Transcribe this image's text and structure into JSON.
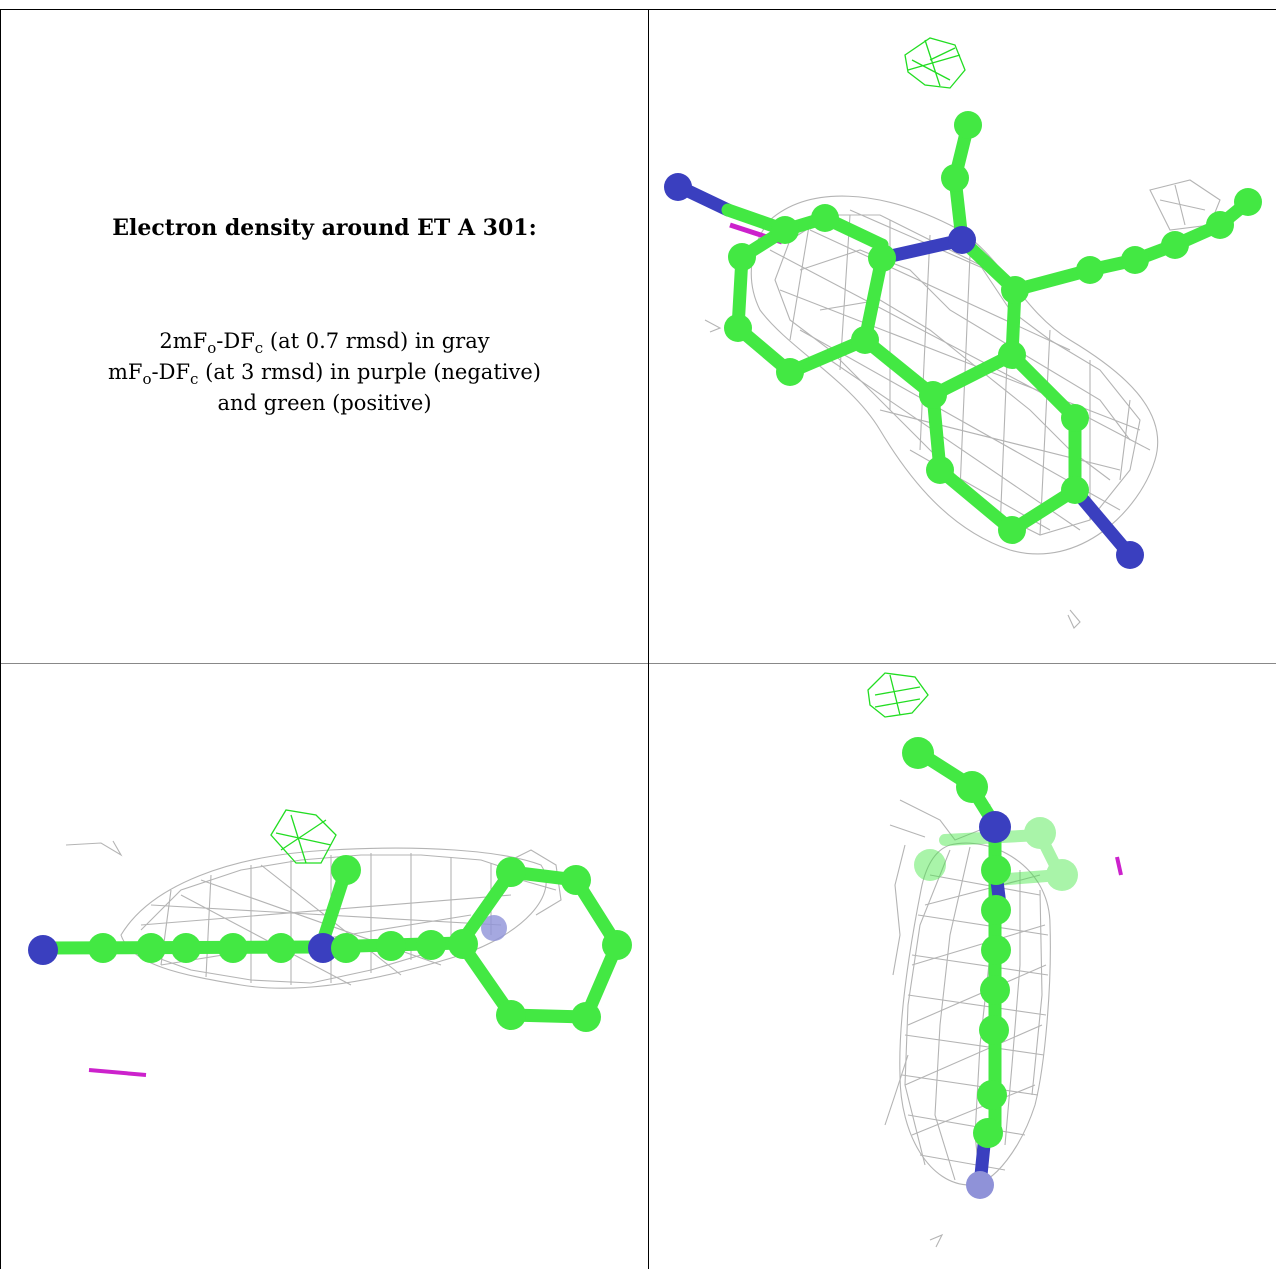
{
  "caption": {
    "title": "Electron density around ET A 301:",
    "line1": {
      "a": "2mF",
      "a_sub": "o",
      "b": "-DF",
      "b_sub": "c",
      "rest": " (at 0.7 rmsd) in gray"
    },
    "line2": {
      "a": "mF",
      "a_sub": "o",
      "b": "-DF",
      "b_sub": "c",
      "rest": " (at 3 rmsd) in purple (negative)"
    },
    "line3": "and green (positive)"
  },
  "colors": {
    "carbon": "#43e843",
    "nitrogen": "#3a3fbf",
    "mesh_2fofc": "#b4b4b4",
    "mesh_negative": "#cc22cc",
    "mesh_positive": "#22dd22"
  }
}
